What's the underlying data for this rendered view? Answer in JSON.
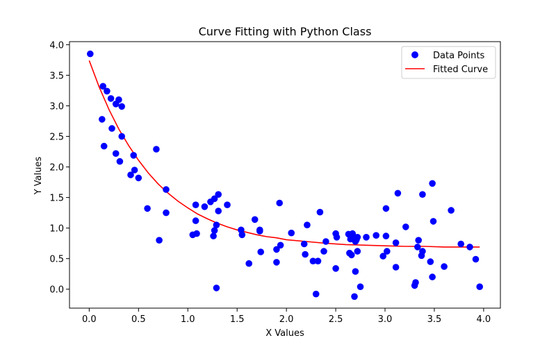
{
  "chart_data": {
    "type": "scatter",
    "title": "Curve Fitting with Python Class",
    "xlabel": "X Values",
    "ylabel": "Y Values",
    "xlim": [
      -0.2,
      4.17
    ],
    "ylim": [
      -0.31,
      4.05
    ],
    "xticks": [
      "0.0",
      "0.5",
      "1.0",
      "1.5",
      "2.0",
      "2.5",
      "3.0",
      "3.5",
      "4.0"
    ],
    "yticks": [
      "0.0",
      "0.5",
      "1.0",
      "1.5",
      "2.0",
      "2.5",
      "3.0",
      "3.5",
      "4.0"
    ],
    "grid": false,
    "legend_position": "top-right",
    "series": [
      {
        "name": "Data Points",
        "kind": "scatter",
        "color": "#0000ff",
        "points": [
          [
            0.01,
            3.85
          ],
          [
            0.14,
            3.32
          ],
          [
            0.18,
            3.24
          ],
          [
            0.22,
            3.12
          ],
          [
            0.27,
            3.03
          ],
          [
            0.3,
            3.1
          ],
          [
            0.33,
            2.99
          ],
          [
            0.13,
            2.78
          ],
          [
            0.23,
            2.63
          ],
          [
            0.33,
            2.5
          ],
          [
            0.15,
            2.34
          ],
          [
            0.27,
            2.22
          ],
          [
            0.31,
            2.09
          ],
          [
            0.45,
            2.19
          ],
          [
            0.46,
            1.95
          ],
          [
            0.42,
            1.87
          ],
          [
            0.5,
            1.82
          ],
          [
            0.68,
            2.29
          ],
          [
            0.78,
            1.63
          ],
          [
            0.59,
            1.32
          ],
          [
            0.78,
            1.25
          ],
          [
            0.71,
            0.8
          ],
          [
            1.08,
            1.38
          ],
          [
            1.08,
            1.12
          ],
          [
            1.05,
            0.89
          ],
          [
            1.09,
            0.91
          ],
          [
            1.17,
            1.35
          ],
          [
            1.23,
            1.43
          ],
          [
            1.27,
            1.48
          ],
          [
            1.31,
            1.55
          ],
          [
            1.31,
            1.28
          ],
          [
            1.4,
            1.38
          ],
          [
            1.29,
            1.05
          ],
          [
            1.27,
            0.96
          ],
          [
            1.26,
            0.87
          ],
          [
            1.29,
            0.02
          ],
          [
            1.54,
            0.97
          ],
          [
            1.55,
            0.89
          ],
          [
            1.62,
            0.42
          ],
          [
            1.68,
            1.14
          ],
          [
            1.73,
            0.97
          ],
          [
            1.73,
            0.95
          ],
          [
            1.74,
            0.61
          ],
          [
            1.9,
            0.65
          ],
          [
            1.9,
            0.44
          ],
          [
            1.93,
            1.41
          ],
          [
            1.94,
            0.72
          ],
          [
            2.05,
            0.92
          ],
          [
            2.18,
            0.74
          ],
          [
            2.19,
            0.57
          ],
          [
            2.21,
            1.05
          ],
          [
            2.27,
            0.46
          ],
          [
            2.3,
            -0.08
          ],
          [
            2.32,
            0.46
          ],
          [
            2.34,
            1.26
          ],
          [
            2.38,
            0.62
          ],
          [
            2.4,
            0.78
          ],
          [
            2.5,
            0.91
          ],
          [
            2.51,
            0.85
          ],
          [
            2.5,
            0.34
          ],
          [
            2.63,
            0.9
          ],
          [
            2.65,
            0.82
          ],
          [
            2.67,
            0.91
          ],
          [
            2.69,
            0.85
          ],
          [
            2.71,
            0.81
          ],
          [
            2.7,
            0.78
          ],
          [
            2.72,
            0.85
          ],
          [
            2.64,
            0.59
          ],
          [
            2.66,
            0.56
          ],
          [
            2.72,
            0.62
          ],
          [
            2.7,
            0.29
          ],
          [
            2.69,
            -0.12
          ],
          [
            2.75,
            0.04
          ],
          [
            2.81,
            0.85
          ],
          [
            2.91,
            0.88
          ],
          [
            3.01,
            0.87
          ],
          [
            3.01,
            1.32
          ],
          [
            2.98,
            0.54
          ],
          [
            3.02,
            0.62
          ],
          [
            3.11,
            0.76
          ],
          [
            3.11,
            0.36
          ],
          [
            3.13,
            1.57
          ],
          [
            3.21,
            1.02
          ],
          [
            3.3,
            0.06
          ],
          [
            3.31,
            0.11
          ],
          [
            3.33,
            0.69
          ],
          [
            3.34,
            0.8
          ],
          [
            3.37,
            0.55
          ],
          [
            3.38,
            0.62
          ],
          [
            3.38,
            1.55
          ],
          [
            3.46,
            0.45
          ],
          [
            3.48,
            1.73
          ],
          [
            3.49,
            1.11
          ],
          [
            3.48,
            0.2
          ],
          [
            3.6,
            0.37
          ],
          [
            3.67,
            1.29
          ],
          [
            3.77,
            0.74
          ],
          [
            3.86,
            0.69
          ],
          [
            3.92,
            0.49
          ],
          [
            3.96,
            0.04
          ]
        ]
      },
      {
        "name": "Fitted Curve",
        "kind": "line",
        "color": "#ff0000",
        "x": [
          0.0,
          0.1,
          0.2,
          0.3,
          0.4,
          0.5,
          0.6,
          0.7,
          0.8,
          0.9,
          1.0,
          1.1,
          1.2,
          1.3,
          1.4,
          1.5,
          1.6,
          1.7,
          1.8,
          1.9,
          2.0,
          2.2,
          2.4,
          2.6,
          2.8,
          3.0,
          3.2,
          3.4,
          3.6,
          3.8,
          3.96
        ],
        "y": [
          3.74,
          3.31,
          2.94,
          2.62,
          2.35,
          2.11,
          1.9,
          1.72,
          1.57,
          1.44,
          1.33,
          1.23,
          1.15,
          1.08,
          1.02,
          0.97,
          0.93,
          0.89,
          0.86,
          0.84,
          0.81,
          0.78,
          0.75,
          0.73,
          0.72,
          0.71,
          0.7,
          0.7,
          0.69,
          0.69,
          0.69
        ]
      }
    ]
  }
}
